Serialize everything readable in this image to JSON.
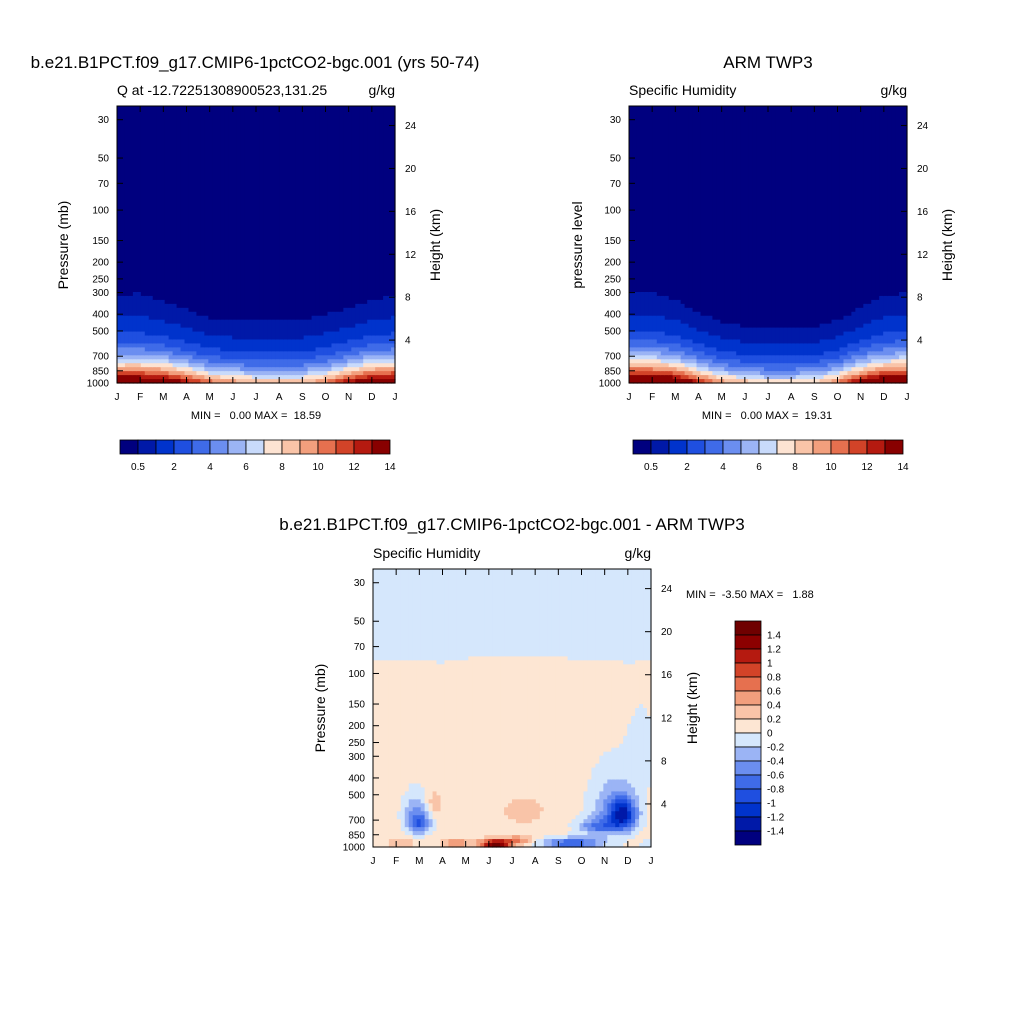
{
  "chart_data": [
    {
      "type": "contour",
      "id": "model",
      "title": "b.e21.B1PCT.f09_g17.CMIP6-1pctCO2-bgc.001 (yrs 50-74)",
      "left_string": "Q at -12.72251308900523,131.25",
      "right_string": "g/kg",
      "ylabel": "Pressure (mb)",
      "ylabel_right": "Height (km)",
      "x_ticks": [
        "J",
        "F",
        "M",
        "A",
        "M",
        "J",
        "J",
        "A",
        "S",
        "O",
        "N",
        "D",
        "J"
      ],
      "y_ticks": [
        "30",
        "50",
        "70",
        "100",
        "150",
        "200",
        "250",
        "300",
        "400",
        "500",
        "700",
        "850",
        "1000"
      ],
      "y_ticks_right": [
        "24",
        "20",
        "16",
        "12",
        "8",
        "4"
      ],
      "ylim": [
        1000,
        25
      ],
      "stats": "MIN =   0.00 MAX =  18.59",
      "min": 0.0,
      "max": 18.59,
      "colorbar_labels": [
        "0.5",
        "2",
        "4",
        "6",
        "8",
        "10",
        "12",
        "14"
      ],
      "legend_position": "bottom",
      "levels": [
        0.5,
        1,
        2,
        3,
        4,
        5,
        6,
        7,
        8,
        9,
        10,
        11,
        12,
        13,
        14
      ],
      "moist_top_mb_by_month": [
        300,
        290,
        340,
        390,
        450,
        470,
        470,
        460,
        450,
        410,
        380,
        330,
        300
      ],
      "surface_q_by_month": [
        16.5,
        16.5,
        16.0,
        13.5,
        11.0,
        10.0,
        9.0,
        9.0,
        9.0,
        10.5,
        13.5,
        16.0,
        16.5
      ]
    },
    {
      "type": "contour",
      "id": "obs",
      "title": "ARM TWP3",
      "left_string": "Specific Humidity",
      "right_string": "g/kg",
      "ylabel": "pressure level",
      "ylabel_right": "Height (km)",
      "x_ticks": [
        "J",
        "F",
        "M",
        "A",
        "M",
        "J",
        "J",
        "A",
        "S",
        "O",
        "N",
        "D",
        "J"
      ],
      "y_ticks": [
        "30",
        "50",
        "70",
        "100",
        "150",
        "200",
        "250",
        "300",
        "400",
        "500",
        "700",
        "850",
        "1000"
      ],
      "y_ticks_right": [
        "24",
        "20",
        "16",
        "12",
        "8",
        "4"
      ],
      "ylim": [
        1000,
        25
      ],
      "stats": "MIN =   0.00 MAX =  19.31",
      "min": 0.0,
      "max": 19.31,
      "colorbar_labels": [
        "0.5",
        "2",
        "4",
        "6",
        "8",
        "10",
        "12",
        "14"
      ],
      "legend_position": "bottom",
      "levels": [
        0.5,
        1,
        2,
        3,
        4,
        5,
        6,
        7,
        8,
        9,
        10,
        11,
        12,
        13,
        14
      ],
      "moist_top_mb_by_month": [
        290,
        290,
        330,
        410,
        480,
        520,
        540,
        530,
        520,
        470,
        380,
        310,
        290
      ],
      "surface_q_by_month": [
        17.5,
        17.5,
        16.5,
        13.0,
        10.0,
        9.0,
        8.0,
        8.0,
        8.5,
        10.5,
        14.5,
        17.0,
        17.5
      ]
    },
    {
      "type": "contour",
      "id": "diff",
      "title": "b.e21.B1PCT.f09_g17.CMIP6-1pctCO2-bgc.001 - ARM TWP3",
      "left_string": "Specific Humidity",
      "right_string": "g/kg",
      "ylabel": "Pressure (mb)",
      "ylabel_right": "Height (km)",
      "x_ticks": [
        "J",
        "F",
        "M",
        "A",
        "M",
        "J",
        "J",
        "A",
        "S",
        "O",
        "N",
        "D",
        "J"
      ],
      "y_ticks": [
        "30",
        "50",
        "70",
        "100",
        "150",
        "200",
        "250",
        "300",
        "400",
        "500",
        "700",
        "850",
        "1000"
      ],
      "y_ticks_right": [
        "24",
        "20",
        "16",
        "12",
        "8",
        "4"
      ],
      "ylim": [
        1000,
        25
      ],
      "stats": "MIN =  -3.50 MAX =   1.88",
      "min": -3.5,
      "max": 1.88,
      "colorbar_labels": [
        "1.4",
        "1.2",
        "1",
        "0.8",
        "0.6",
        "0.4",
        "0.2",
        "0",
        "-0.2",
        "-0.4",
        "-0.6",
        "-0.8",
        "-1",
        "-1.2",
        "-1.4"
      ],
      "legend_position": "right",
      "levels": [
        -1.4,
        -1.2,
        -1,
        -0.8,
        -0.6,
        -0.4,
        -0.2,
        0,
        0.2,
        0.4,
        0.6,
        0.8,
        1,
        1.2,
        1.4
      ],
      "positive_top_mb_by_month": [
        85,
        82,
        84,
        87,
        82,
        80,
        80,
        79,
        80,
        85,
        84,
        87,
        85
      ]
    }
  ],
  "colors": {
    "model_obs_palette": [
      "#00007f",
      "#0019a8",
      "#0033cc",
      "#1f4fe0",
      "#3f6be8",
      "#6b8ef0",
      "#9bb4f5",
      "#c8dafb",
      "#fde3d2",
      "#f9c4a8",
      "#f29f7d",
      "#e6704f",
      "#d24328",
      "#b51a10",
      "#880000"
    ],
    "diff_palette": [
      "#00007f",
      "#0019a8",
      "#0033cc",
      "#1f4fe0",
      "#3f6be8",
      "#6b8ef0",
      "#9bb4f5",
      "#d5e7fc",
      "#fde6d3",
      "#f9c4a8",
      "#f29f7d",
      "#e6704f",
      "#d24328",
      "#b51a10",
      "#8c0000",
      "#6f0000"
    ]
  }
}
